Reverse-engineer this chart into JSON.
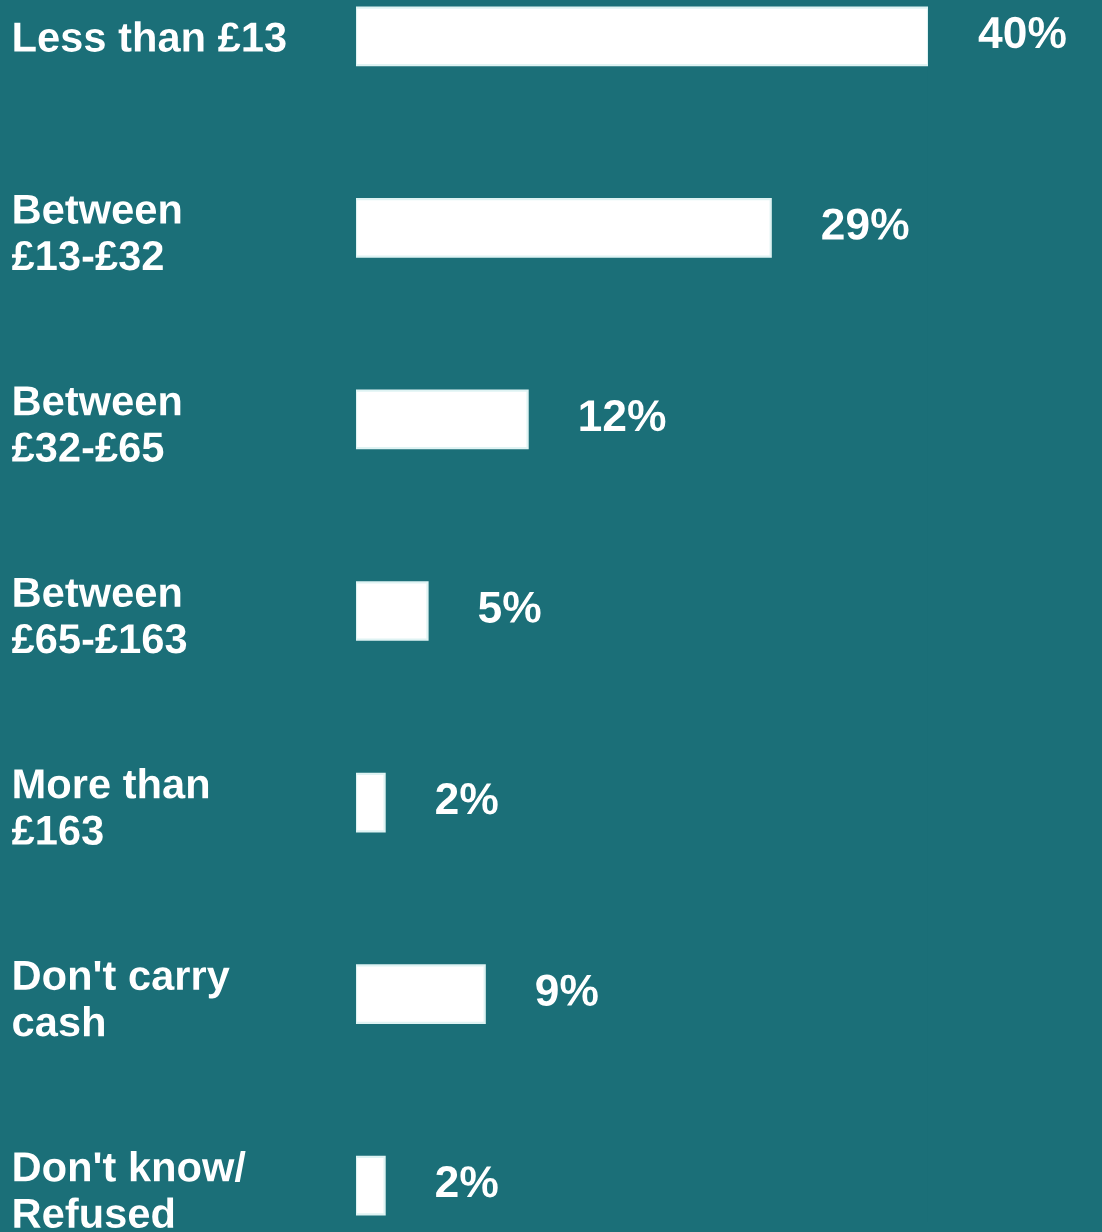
{
  "chart_data": {
    "type": "bar",
    "orientation": "horizontal",
    "categories": [
      "Less than £13",
      "Between\n£13-£32",
      "Between\n£32-£65",
      "Between\n£65-£163",
      "More than\n£163",
      "Don't carry\ncash",
      "Don't know/\nRefused"
    ],
    "values": [
      40,
      29,
      12,
      5,
      2,
      9,
      2
    ],
    "value_labels": [
      "40%",
      "29%",
      "12%",
      "5%",
      "2%",
      "9%",
      "2%"
    ],
    "color": "#ffffff",
    "grid": false,
    "legend": false
  }
}
